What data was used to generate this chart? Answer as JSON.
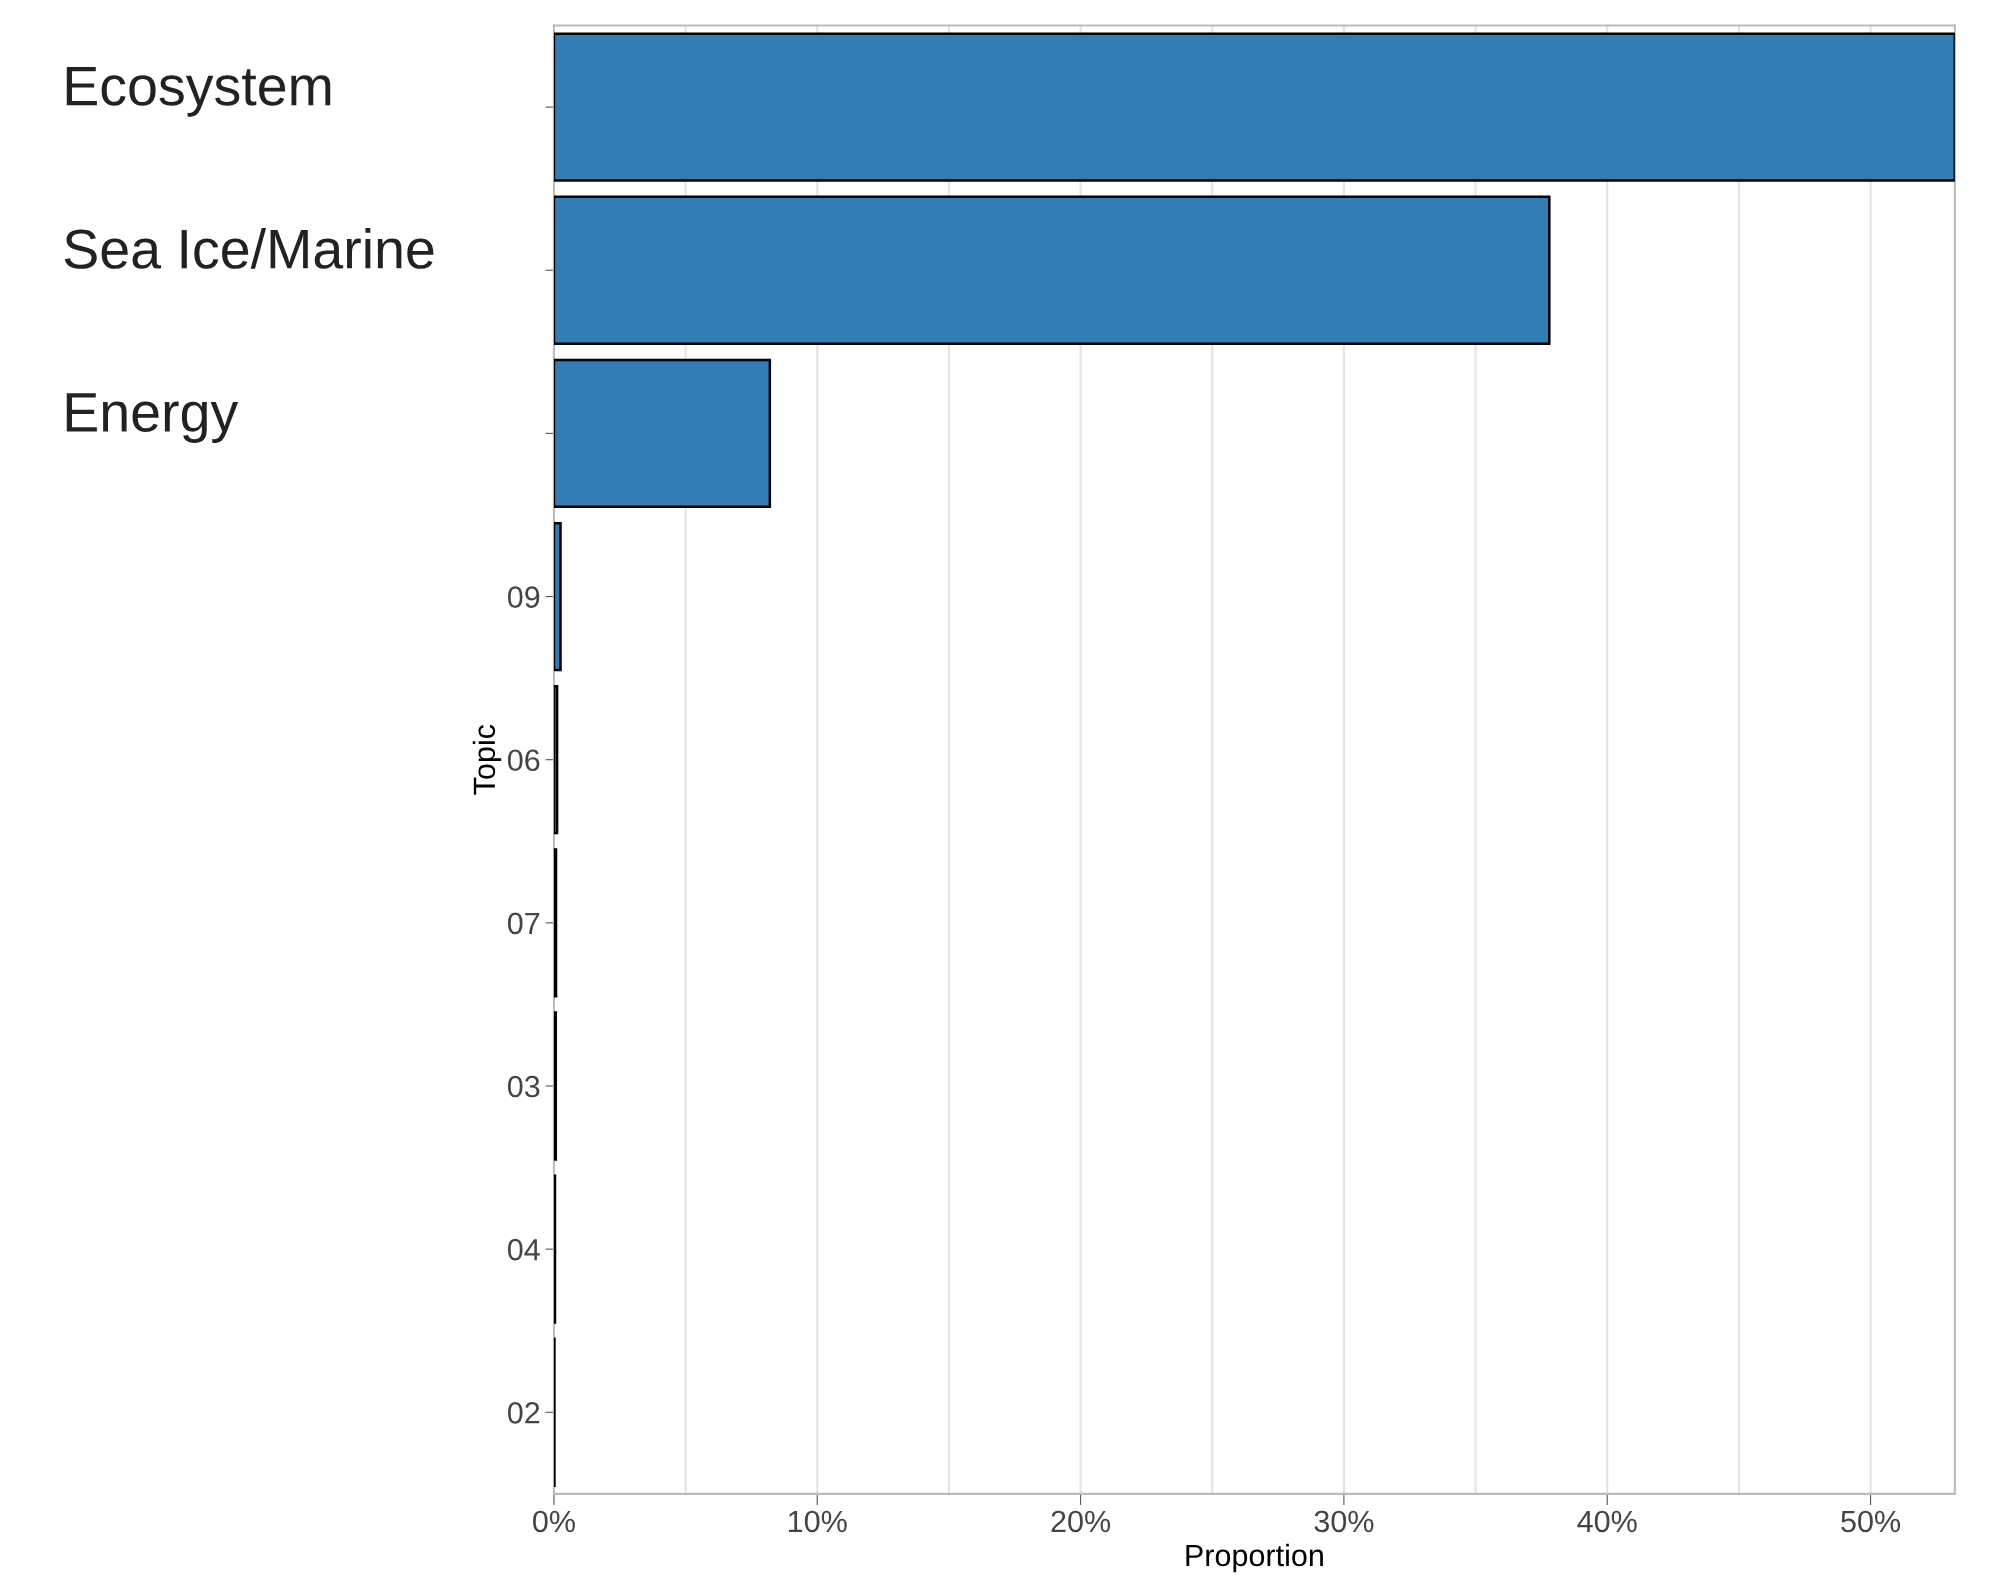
{
  "chart_data": {
    "type": "bar",
    "orientation": "horizontal",
    "xlabel": "Proportion",
    "ylabel": "Topic",
    "categories": [
      "Ecosystem",
      "Sea Ice/Marine",
      "Energy",
      "09",
      "06",
      "07",
      "03",
      "04",
      "02"
    ],
    "values": [
      53.2,
      37.8,
      8.2,
      0.25,
      0.12,
      0.08,
      0.07,
      0.04,
      0.02
    ],
    "color": "#317eb5",
    "xlim": [
      0,
      53.2
    ],
    "xticks": [
      {
        "value": 0,
        "label": "0%"
      },
      {
        "value": 5,
        "label": null
      },
      {
        "value": 10,
        "label": "10%"
      },
      {
        "value": 15,
        "label": null
      },
      {
        "value": 20,
        "label": "20%"
      },
      {
        "value": 25,
        "label": null
      },
      {
        "value": 30,
        "label": "30%"
      },
      {
        "value": 35,
        "label": null
      },
      {
        "value": 40,
        "label": "40%"
      },
      {
        "value": 45,
        "label": null
      },
      {
        "value": 50,
        "label": "50%"
      }
    ],
    "grid": "x"
  }
}
